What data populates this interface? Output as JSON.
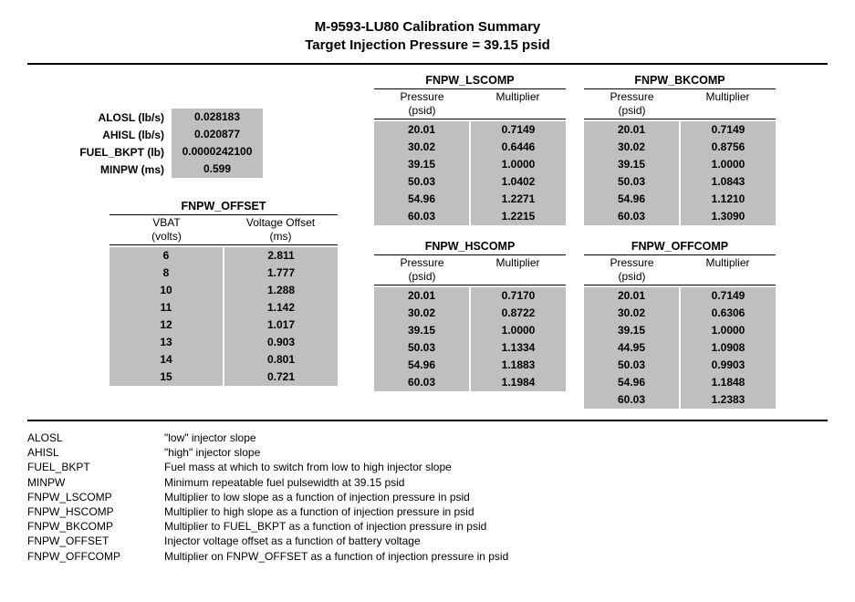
{
  "title_line1": "M-9593-LU80 Calibration Summary",
  "title_line2": "Target Injection Pressure = 39.15 psid",
  "params": [
    {
      "label": "ALOSL",
      "unit": "(lb/s)",
      "value": "0.028183"
    },
    {
      "label": "AHISL",
      "unit": "(lb/s)",
      "value": "0.020877"
    },
    {
      "label": "FUEL_BKPT",
      "unit": "(lb)",
      "value": "0.0000242100"
    },
    {
      "label": "MINPW",
      "unit": "(ms)",
      "value": "0.599"
    }
  ],
  "tables": {
    "lscomp": {
      "name": "FNPW_LSCOMP",
      "head": [
        "Pressure",
        "Multiplier"
      ],
      "sub": [
        "(psid)",
        ""
      ],
      "rows": [
        [
          "20.01",
          "0.7149"
        ],
        [
          "30.02",
          "0.6446"
        ],
        [
          "39.15",
          "1.0000"
        ],
        [
          "50.03",
          "1.0402"
        ],
        [
          "54.96",
          "1.2271"
        ],
        [
          "60.03",
          "1.2215"
        ]
      ]
    },
    "bkcomp": {
      "name": "FNPW_BKCOMP",
      "head": [
        "Pressure",
        "Multiplier"
      ],
      "sub": [
        "(psid)",
        ""
      ],
      "rows": [
        [
          "20.01",
          "0.7149"
        ],
        [
          "30.02",
          "0.8756"
        ],
        [
          "39.15",
          "1.0000"
        ],
        [
          "50.03",
          "1.0843"
        ],
        [
          "54.96",
          "1.1210"
        ],
        [
          "60.03",
          "1.3090"
        ]
      ]
    },
    "offset": {
      "name": "FNPW_OFFSET",
      "head": [
        "VBAT",
        "Voltage Offset"
      ],
      "sub": [
        "(volts)",
        "(ms)"
      ],
      "rows": [
        [
          "6",
          "2.811"
        ],
        [
          "8",
          "1.777"
        ],
        [
          "10",
          "1.288"
        ],
        [
          "11",
          "1.142"
        ],
        [
          "12",
          "1.017"
        ],
        [
          "13",
          "0.903"
        ],
        [
          "14",
          "0.801"
        ],
        [
          "15",
          "0.721"
        ]
      ]
    },
    "hscomp": {
      "name": "FNPW_HSCOMP",
      "head": [
        "Pressure",
        "Multiplier"
      ],
      "sub": [
        "(psid)",
        ""
      ],
      "rows": [
        [
          "20.01",
          "0.7170"
        ],
        [
          "30.02",
          "0.8722"
        ],
        [
          "39.15",
          "1.0000"
        ],
        [
          "50.03",
          "1.1334"
        ],
        [
          "54.96",
          "1.1883"
        ],
        [
          "60.03",
          "1.1984"
        ]
      ]
    },
    "offcomp": {
      "name": "FNPW_OFFCOMP",
      "head": [
        "Pressure",
        "Multiplier"
      ],
      "sub": [
        "(psid)",
        ""
      ],
      "rows": [
        [
          "20.01",
          "0.7149"
        ],
        [
          "30.02",
          "0.6306"
        ],
        [
          "39.15",
          "1.0000"
        ],
        [
          "44.95",
          "1.0908"
        ],
        [
          "50.03",
          "0.9903"
        ],
        [
          "54.96",
          "1.1848"
        ],
        [
          "60.03",
          "1.2383"
        ]
      ]
    }
  },
  "glossary": [
    {
      "key": "ALOSL",
      "desc": "\"low\" injector slope"
    },
    {
      "key": "AHISL",
      "desc": "\"high\" injector slope"
    },
    {
      "key": "FUEL_BKPT",
      "desc": "Fuel mass at which to switch from low to high injector slope"
    },
    {
      "key": "MINPW",
      "desc": "Minimum repeatable fuel pulsewidth at 39.15 psid"
    },
    {
      "key": "FNPW_LSCOMP",
      "desc": "Multiplier to low slope as a function of injection pressure in psid"
    },
    {
      "key": "FNPW_HSCOMP",
      "desc": "Multiplier to high slope as a function of injection pressure in psid"
    },
    {
      "key": "FNPW_BKCOMP",
      "desc": "Multiplier to FUEL_BKPT as a function of injection pressure in psid"
    },
    {
      "key": "FNPW_OFFSET",
      "desc": "Injector voltage offset as a function of battery voltage"
    },
    {
      "key": "FNPW_OFFCOMP",
      "desc": "Multiplier on FNPW_OFFSET as a function of injection pressure in psid"
    }
  ],
  "colors": {
    "cell_bg": "#bfbfbf",
    "text": "#000000",
    "page_bg": "#ffffff"
  }
}
